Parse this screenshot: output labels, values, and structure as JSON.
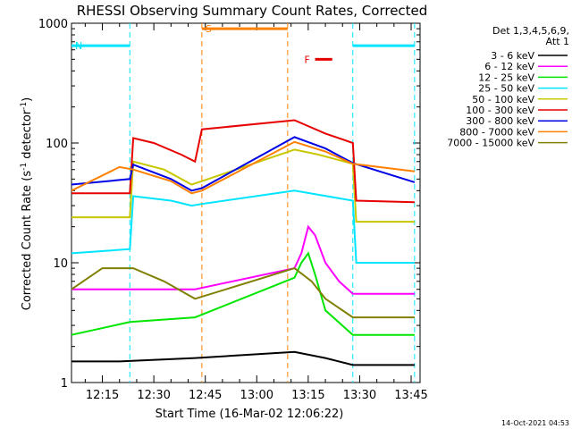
{
  "chart_data": {
    "type": "line",
    "title": "RHESSI Observing Summary Count Rates, Corrected",
    "xlabel": "Start Time (16-Mar-02 12:06:22)",
    "ylabel_main": "Corrected Count Rate (s",
    "ylabel_sup1": "-1",
    "ylabel_mid": " detector",
    "ylabel_sup2": "-1",
    "ylabel_end": ")",
    "y_scale": "log",
    "ylim": [
      1,
      1000
    ],
    "xlim": [
      "12:06:22",
      "13:47:00"
    ],
    "y_ticks": [
      "1",
      "10",
      "100",
      "1000"
    ],
    "x_ticks": [
      "12:15",
      "12:30",
      "12:45",
      "13:00",
      "13:15",
      "13:30",
      "13:45"
    ],
    "legend_header": [
      "Det 1,3,4,5,6,9,",
      "Att 1"
    ],
    "legend_position": "right",
    "footer_date": "14-Oct-2021 04:53",
    "markers": [
      {
        "label": "N",
        "start": "12:06",
        "end": "12:23",
        "level": 650,
        "color": "#00e5ff"
      },
      {
        "label": "S",
        "start": "12:44",
        "end": "13:09",
        "level": 900,
        "color": "#ff8000"
      },
      {
        "label": "F",
        "start": "13:17",
        "end": "13:22",
        "level": 500,
        "color": "#e60000"
      },
      {
        "label": "",
        "start": "13:28",
        "end": "13:46",
        "level": 650,
        "color": "#00e5ff"
      }
    ],
    "boundaries": [
      {
        "time": "12:23",
        "color": "#00e5ff"
      },
      {
        "time": "12:44",
        "color": "#ff8000"
      },
      {
        "time": "13:09",
        "color": "#ff8000"
      },
      {
        "time": "13:28",
        "color": "#00e5ff"
      },
      {
        "time": "13:46",
        "color": "#00e5ff"
      }
    ],
    "series": [
      {
        "name": "3 - 6 keV",
        "color": "#000000",
        "x": [
          "12:06",
          "12:20",
          "12:42",
          "13:11",
          "13:20",
          "13:28",
          "13:46"
        ],
        "y": [
          1.5,
          1.5,
          1.6,
          1.8,
          1.6,
          1.4,
          1.4
        ]
      },
      {
        "name": "6 - 12 keV",
        "color": "#ff00ff",
        "x": [
          "12:06",
          "12:23",
          "12:42",
          "13:11",
          "13:13",
          "13:15",
          "13:17",
          "13:20",
          "13:24",
          "13:28",
          "13:46"
        ],
        "y": [
          6,
          6,
          6,
          9,
          12,
          20,
          17,
          10,
          7,
          5.5,
          5.5
        ]
      },
      {
        "name": "12 - 25 keV",
        "color": "#00e600",
        "x": [
          "12:06",
          "12:23",
          "12:42",
          "13:11",
          "13:13",
          "13:15",
          "13:17",
          "13:20",
          "13:28",
          "13:46"
        ],
        "y": [
          2.5,
          3.2,
          3.5,
          7.5,
          10,
          12,
          8,
          4,
          2.5,
          2.5
        ]
      },
      {
        "name": "25 - 50 keV",
        "color": "#00e5ff",
        "x": [
          "12:06",
          "12:23",
          "12:24",
          "12:35",
          "12:41",
          "12:44",
          "13:11",
          "13:28",
          "13:29",
          "13:46"
        ],
        "y": [
          12,
          13,
          36,
          33,
          30,
          31,
          40,
          33,
          10,
          10
        ]
      },
      {
        "name": "50 - 100 keV",
        "color": "#c8c800",
        "x": [
          "12:06",
          "12:23",
          "12:24",
          "12:33",
          "12:41",
          "12:44",
          "13:11",
          "13:18",
          "13:28",
          "13:29",
          "13:46"
        ],
        "y": [
          24,
          24,
          70,
          60,
          45,
          48,
          88,
          80,
          67,
          22,
          22
        ]
      },
      {
        "name": "100 - 300 keV",
        "color": "#e60000",
        "x": [
          "12:06",
          "12:23",
          "12:24",
          "12:30",
          "12:38",
          "12:42",
          "12:44",
          "13:11",
          "13:20",
          "13:28",
          "13:29",
          "13:46"
        ],
        "y": [
          38,
          38,
          110,
          100,
          80,
          70,
          130,
          155,
          120,
          100,
          33,
          32
        ]
      },
      {
        "name": "300 - 800 keV",
        "color": "#0000e6",
        "x": [
          "12:06",
          "12:23",
          "12:24",
          "12:35",
          "12:41",
          "12:44",
          "13:11",
          "13:20",
          "13:28",
          "13:46"
        ],
        "y": [
          45,
          50,
          66,
          50,
          40,
          42,
          112,
          90,
          68,
          47
        ]
      },
      {
        "name": "800 - 7000 keV",
        "color": "#ff8000",
        "x": [
          "12:06",
          "12:20",
          "12:24",
          "12:35",
          "12:41",
          "12:44",
          "13:11",
          "13:20",
          "13:28",
          "13:46"
        ],
        "y": [
          40,
          63,
          60,
          48,
          38,
          40,
          102,
          85,
          67,
          58
        ]
      },
      {
        "name": "7000 - 15000 keV",
        "color": "#808000",
        "x": [
          "12:06",
          "12:15",
          "12:24",
          "12:33",
          "12:42",
          "13:11",
          "13:16",
          "13:20",
          "13:28",
          "13:46"
        ],
        "y": [
          6,
          9,
          9,
          7,
          5,
          9,
          7,
          5,
          3.5,
          3.5
        ]
      }
    ]
  }
}
